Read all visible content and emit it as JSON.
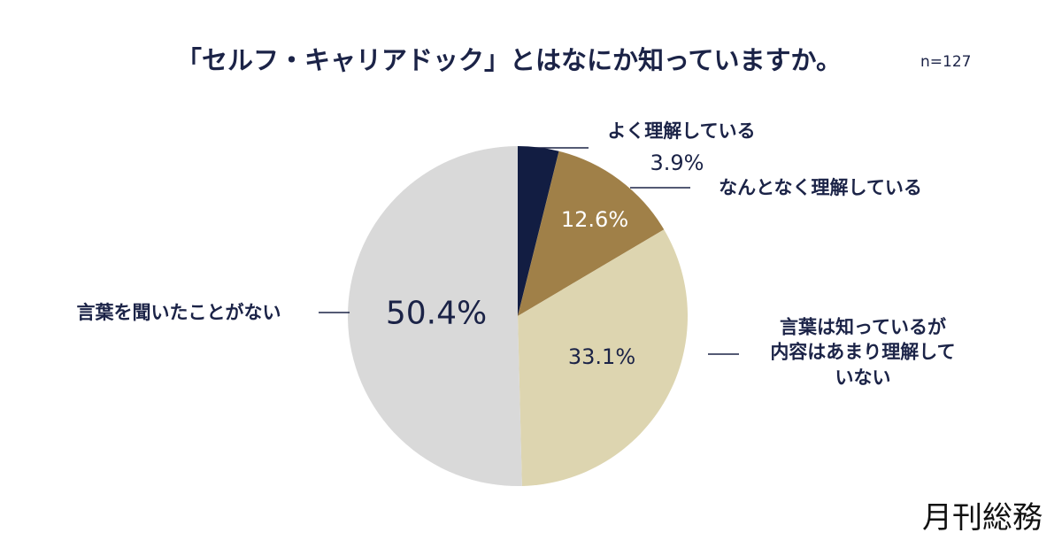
{
  "chart_data": {
    "type": "pie",
    "title": "「セルフ・キャリアドック」とはなにか知っていますか。",
    "note": "n=127",
    "source": "月刊総務",
    "categories": [
      "よく理解している",
      "なんとなく理解している",
      "言葉は知っているが\n内容はあまり理解していない",
      "言葉を聞いたことがない"
    ],
    "values": [
      3.9,
      12.6,
      33.1,
      50.4
    ],
    "value_labels": [
      "3.9%",
      "12.6%",
      "33.1%",
      "50.4%"
    ],
    "colors": [
      "#121d42",
      "#a08048",
      "#ddd5b0",
      "#d9d9d9"
    ]
  }
}
